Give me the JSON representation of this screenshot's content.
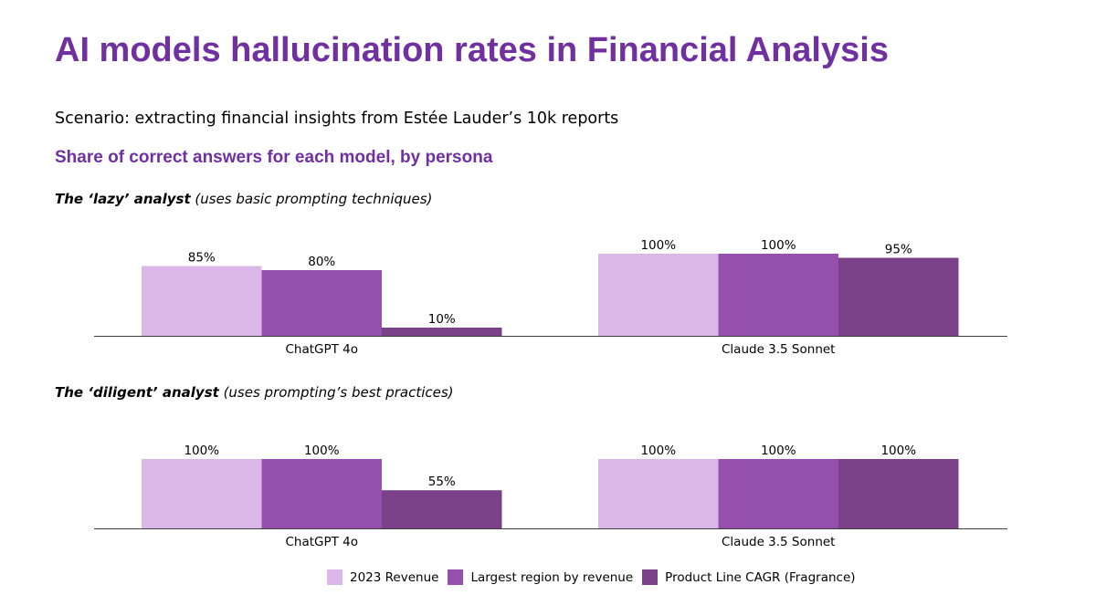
{
  "title": "AI models hallucination rates in Financial Analysis",
  "scenario": "Scenario: extracting financial insights from Estée Lauder’s 10k reports",
  "subtitle": "Share of correct answers for each model, by persona",
  "sections": [
    {
      "bold": "The ‘lazy’ analyst",
      "rest": " (uses basic prompting techniques)"
    },
    {
      "bold": "The ‘diligent’ analyst",
      "rest": " (uses prompting’s best practices)"
    }
  ],
  "chart_data": [
    {
      "type": "bar",
      "title": "The ‘lazy’ analyst (uses basic prompting techniques)",
      "categories": [
        "ChatGPT 4o",
        "Claude 3.5 Sonnet"
      ],
      "series": [
        {
          "name": "2023 Revenue",
          "color": "#dbb7e8",
          "values": [
            85,
            100
          ],
          "labels": [
            "85%",
            "100%"
          ]
        },
        {
          "name": "Largest region by revenue",
          "color": "#9550ad",
          "values": [
            80,
            100
          ],
          "labels": [
            "80%",
            "100%"
          ]
        },
        {
          "name": "Product Line CAGR (Fragrance)",
          "color": "#7a4088",
          "values": [
            10,
            95
          ],
          "labels": [
            "10%",
            "95%"
          ]
        }
      ],
      "ylim": [
        0,
        100
      ],
      "xlabel": "",
      "ylabel": "",
      "grid": false
    },
    {
      "type": "bar",
      "title": "The ‘diligent’ analyst (uses prompting’s best practices)",
      "categories": [
        "ChatGPT 4o",
        "Claude 3.5 Sonnet"
      ],
      "series": [
        {
          "name": "2023 Revenue",
          "color": "#dbb7e8",
          "values": [
            100,
            100
          ],
          "labels": [
            "100%",
            "100%"
          ]
        },
        {
          "name": "Largest region by revenue",
          "color": "#9550ad",
          "values": [
            100,
            100
          ],
          "labels": [
            "100%",
            "100%"
          ]
        },
        {
          "name": "Product Line CAGR (Fragrance)",
          "color": "#7a4088",
          "values": [
            55,
            100
          ],
          "labels": [
            "55%",
            "100%"
          ]
        }
      ],
      "ylim": [
        0,
        100
      ],
      "xlabel": "",
      "ylabel": "",
      "grid": false
    }
  ],
  "legend": [
    {
      "label": "2023 Revenue",
      "color": "#dbb7e8"
    },
    {
      "label": "Largest region by revenue",
      "color": "#9550ad"
    },
    {
      "label": "Product Line CAGR (Fragrance)",
      "color": "#7a4088"
    }
  ]
}
